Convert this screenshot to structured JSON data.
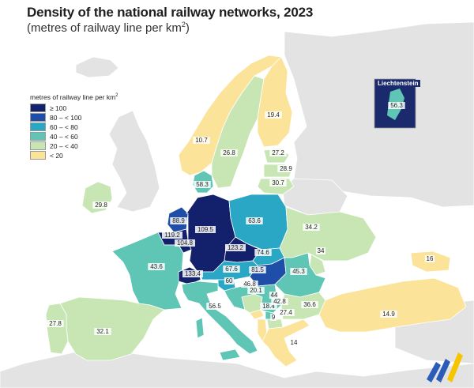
{
  "header": {
    "title": "Density of the national railway networks, 2023",
    "subtitle_prefix": "(metres of railway line per km",
    "subtitle_sup": "2",
    "subtitle_suffix": ")"
  },
  "legend": {
    "title_prefix": "metres of railway line per km",
    "title_sup": "2",
    "classes": [
      {
        "label": "≥ 100",
        "color": "#13206b"
      },
      {
        "label": "80 – < 100",
        "color": "#1f4ea8"
      },
      {
        "label": "60 – < 80",
        "color": "#2aa7c4"
      },
      {
        "label": "40 – < 60",
        "color": "#5fc5b5"
      },
      {
        "label": "20 – < 40",
        "color": "#c8e6b4"
      },
      {
        "label": "< 20",
        "color": "#fbe49a"
      }
    ]
  },
  "inset": {
    "title": "Liechtenstein",
    "value": "56.3"
  },
  "colors": {
    "sea": "#ffffff",
    "non_eu_land": "#e3e3e3",
    "border": "#ffffff",
    "logo_blue": "#2a5cb8",
    "logo_yellow": "#f6c500"
  },
  "countries": [
    {
      "name": "Ireland",
      "value": "29.8",
      "class": 4
    },
    {
      "name": "Portugal",
      "value": "27.8",
      "class": 4
    },
    {
      "name": "Spain",
      "value": "32.1",
      "class": 4
    },
    {
      "name": "France",
      "value": "43.6",
      "class": 3
    },
    {
      "name": "Belgium",
      "value": "119.2",
      "class": 0
    },
    {
      "name": "Netherlands",
      "value": "88.9",
      "class": 1
    },
    {
      "name": "Luxembourg",
      "value": "104.8",
      "class": 0
    },
    {
      "name": "Germany",
      "value": "109.5",
      "class": 0
    },
    {
      "name": "Switzerland",
      "value": "133.4",
      "class": 0
    },
    {
      "name": "Liechtenstein",
      "value": "56.3",
      "class": 3
    },
    {
      "name": "Austria",
      "value": "67.6",
      "class": 2
    },
    {
      "name": "Czechia",
      "value": "123.2",
      "class": 0
    },
    {
      "name": "Slovakia",
      "value": "74.6",
      "class": 2
    },
    {
      "name": "Hungary",
      "value": "81.5",
      "class": 1
    },
    {
      "name": "Slovenia",
      "value": "60",
      "class": 2
    },
    {
      "name": "Croatia",
      "value": "46.8",
      "class": 3
    },
    {
      "name": "Bosnia and Herzegovina",
      "value": "20.1",
      "class": 4
    },
    {
      "name": "Serbia",
      "value": "44",
      "class": 3
    },
    {
      "name": "Montenegro",
      "value": "18.4",
      "class": 5
    },
    {
      "name": "Kosovo",
      "value": "42.8",
      "class": 3
    },
    {
      "name": "Albania",
      "value": "9",
      "class": 5
    },
    {
      "name": "North Macedonia",
      "value": "27.4",
      "class": 4
    },
    {
      "name": "Bulgaria",
      "value": "36.6",
      "class": 4
    },
    {
      "name": "Romania",
      "value": "45.3",
      "class": 3
    },
    {
      "name": "Moldova",
      "value": "34",
      "class": 4
    },
    {
      "name": "Ukraine",
      "value": "34.2",
      "class": 4
    },
    {
      "name": "Poland",
      "value": "63.6",
      "class": 2
    },
    {
      "name": "Denmark",
      "value": "58.3",
      "class": 3
    },
    {
      "name": "Norway",
      "value": "10.7",
      "class": 5
    },
    {
      "name": "Sweden",
      "value": "26.8",
      "class": 4
    },
    {
      "name": "Finland",
      "value": "19.4",
      "class": 5
    },
    {
      "name": "Estonia",
      "value": "27.2",
      "class": 4
    },
    {
      "name": "Latvia",
      "value": "28.9",
      "class": 4
    },
    {
      "name": "Lithuania",
      "value": "30.7",
      "class": 4
    },
    {
      "name": "Italy",
      "value": "56.5",
      "class": 3
    },
    {
      "name": "Greece",
      "value": "14",
      "class": 5
    },
    {
      "name": "Türkiye",
      "value": "14.9",
      "class": 5
    },
    {
      "name": "Georgia",
      "value": "16",
      "class": 5
    }
  ]
}
